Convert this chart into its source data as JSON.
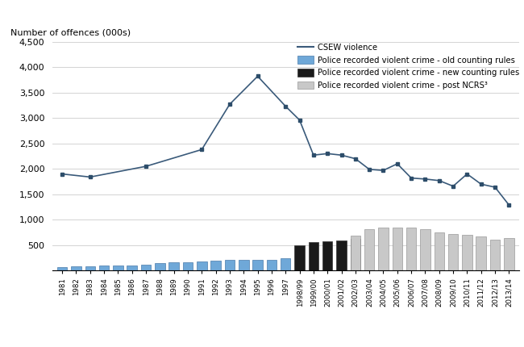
{
  "ylabel": "Number of offences (000s)",
  "ylim": [
    0,
    4500
  ],
  "yticks": [
    0,
    500,
    1000,
    1500,
    2000,
    2500,
    3000,
    3500,
    4000,
    4500
  ],
  "bar_old_labels": [
    "1981",
    "1982",
    "1983",
    "1984",
    "1985",
    "1986",
    "1987",
    "1988",
    "1989",
    "1990",
    "1991",
    "1992",
    "1993",
    "1994",
    "1995",
    "1996",
    "1997"
  ],
  "bar_old_values": [
    75,
    80,
    78,
    95,
    100,
    105,
    125,
    150,
    160,
    170,
    185,
    195,
    210,
    212,
    215,
    220,
    250
  ],
  "bar_new_labels": [
    "1998/99",
    "1999/00",
    "2000/01",
    "2001/02",
    "2002/03"
  ],
  "bar_new_values": [
    500,
    568,
    573,
    598,
    630
  ],
  "bar_post_labels": [
    "2002/03",
    "2003/04",
    "2004/05",
    "2005/06",
    "2006/07",
    "2007/08",
    "2008/09",
    "2009/10",
    "2010/11",
    "2011/12",
    "2012/13",
    "2013/14"
  ],
  "bar_post_values": [
    695,
    810,
    850,
    840,
    840,
    815,
    750,
    715,
    700,
    670,
    610,
    635
  ],
  "csew_data": [
    [
      "1981",
      1900
    ],
    [
      "1983",
      1840
    ],
    [
      "1987",
      2050
    ],
    [
      "1991",
      2380
    ],
    [
      "1993",
      3270
    ],
    [
      "1995",
      3820
    ],
    [
      "1997",
      3230
    ],
    [
      "1998/99",
      2960
    ],
    [
      "1999/00",
      2270
    ],
    [
      "2000/01",
      2300
    ],
    [
      "2001/02",
      2270
    ],
    [
      "2002/03",
      2200
    ],
    [
      "2003/04",
      1990
    ],
    [
      "2004/05",
      1970
    ],
    [
      "2005/06",
      2100
    ],
    [
      "2006/07",
      1820
    ],
    [
      "2007/08",
      1800
    ],
    [
      "2008/09",
      1770
    ],
    [
      "2009/10",
      1660
    ],
    [
      "2010/11",
      1900
    ],
    [
      "2011/12",
      1700
    ],
    [
      "2012/13",
      1640
    ],
    [
      "2013/14",
      1290
    ]
  ],
  "color_csew_line": "#3a5a7a",
  "color_csew_marker": "#2d4d6a",
  "color_old": "#6fa8d8",
  "color_new": "#1a1a1a",
  "color_post": "#c8c8c8",
  "legend_csew": "CSEW violence",
  "legend_old": "Police recorded violent crime - old counting rules",
  "legend_new": "Police recorded violent crime - new counting rules",
  "legend_post": "Police recorded violent crime - post NCRS³"
}
